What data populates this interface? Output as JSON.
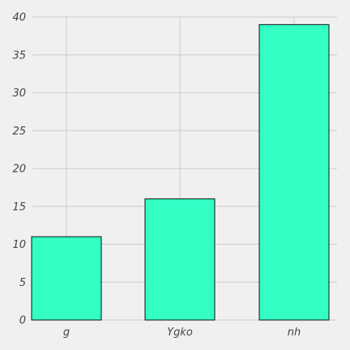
{
  "chart_data": {
    "type": "bar",
    "categories": [
      "g",
      "Ygko",
      "nh"
    ],
    "values": [
      11,
      16,
      39
    ],
    "ylim": [
      0,
      40
    ],
    "yticks": [
      0,
      5,
      10,
      15,
      20,
      25,
      30,
      35,
      40
    ],
    "grid": true,
    "colors": {
      "background": "#f0f0f0",
      "bar_fill": "#33ffc4",
      "bar_edge": "#111111",
      "grid": "#cbcbcb",
      "tick_text": "#444444"
    }
  }
}
